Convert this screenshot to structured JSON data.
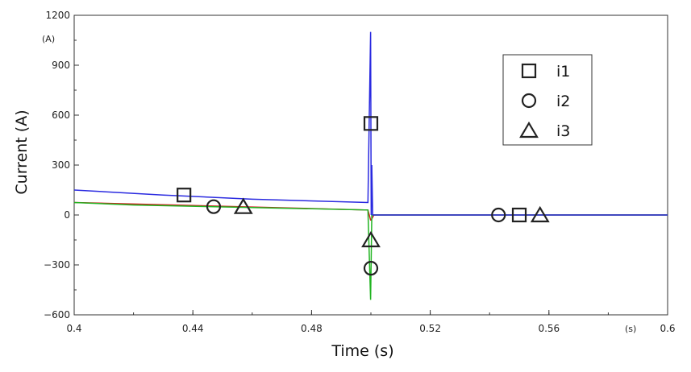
{
  "chart_data": {
    "type": "line",
    "title": "",
    "xlabel": "Time (s)",
    "ylabel": "Current (A)",
    "x_unit": "(s)",
    "y_unit": "(A)",
    "xlim": [
      0.4,
      0.6
    ],
    "ylim": [
      -600,
      1200
    ],
    "x_ticks": [
      0.4,
      0.44,
      0.48,
      0.52,
      0.56,
      0.6
    ],
    "x_tick_labels": [
      "0.4",
      "0.44",
      "0.48",
      "0.52",
      "0.56",
      "0.6"
    ],
    "y_ticks": [
      -600,
      -300,
      0,
      300,
      600,
      900,
      1200
    ],
    "y_tick_labels": [
      "−600",
      "−300",
      "0",
      "300",
      "600",
      "900",
      "1200"
    ],
    "grid": false,
    "legend_position": "top-right",
    "series": [
      {
        "name": "i1",
        "color": "#2a2ae0",
        "marker": "square",
        "x": [
          0.4,
          0.43,
          0.46,
          0.499,
          0.4999,
          0.5001,
          0.5003,
          0.5006,
          0.501,
          0.6
        ],
        "y": [
          150,
          120,
          95,
          75,
          1100,
          0,
          300,
          0,
          0,
          0
        ],
        "marker_points": [
          [
            0.437,
            120
          ],
          [
            0.5,
            550
          ],
          [
            0.55,
            0
          ]
        ]
      },
      {
        "name": "i2",
        "color": "#d02020",
        "marker": "circle",
        "x": [
          0.4,
          0.499,
          0.4999,
          0.5001,
          0.501,
          0.6
        ],
        "y": [
          75,
          30,
          -30,
          -30,
          0,
          0
        ],
        "marker_points": [
          [
            0.447,
            50
          ],
          [
            0.5,
            -320
          ],
          [
            0.543,
            0
          ]
        ]
      },
      {
        "name": "i3",
        "color": "#22b422",
        "marker": "triangle",
        "x": [
          0.4,
          0.42,
          0.46,
          0.499,
          0.4999,
          0.5001,
          0.5003,
          0.501,
          0.6
        ],
        "y": [
          75,
          60,
          45,
          30,
          -510,
          -260,
          0,
          0,
          0
        ],
        "marker_points": [
          [
            0.457,
            50
          ],
          [
            0.5,
            -150
          ],
          [
            0.557,
            0
          ]
        ]
      }
    ]
  }
}
